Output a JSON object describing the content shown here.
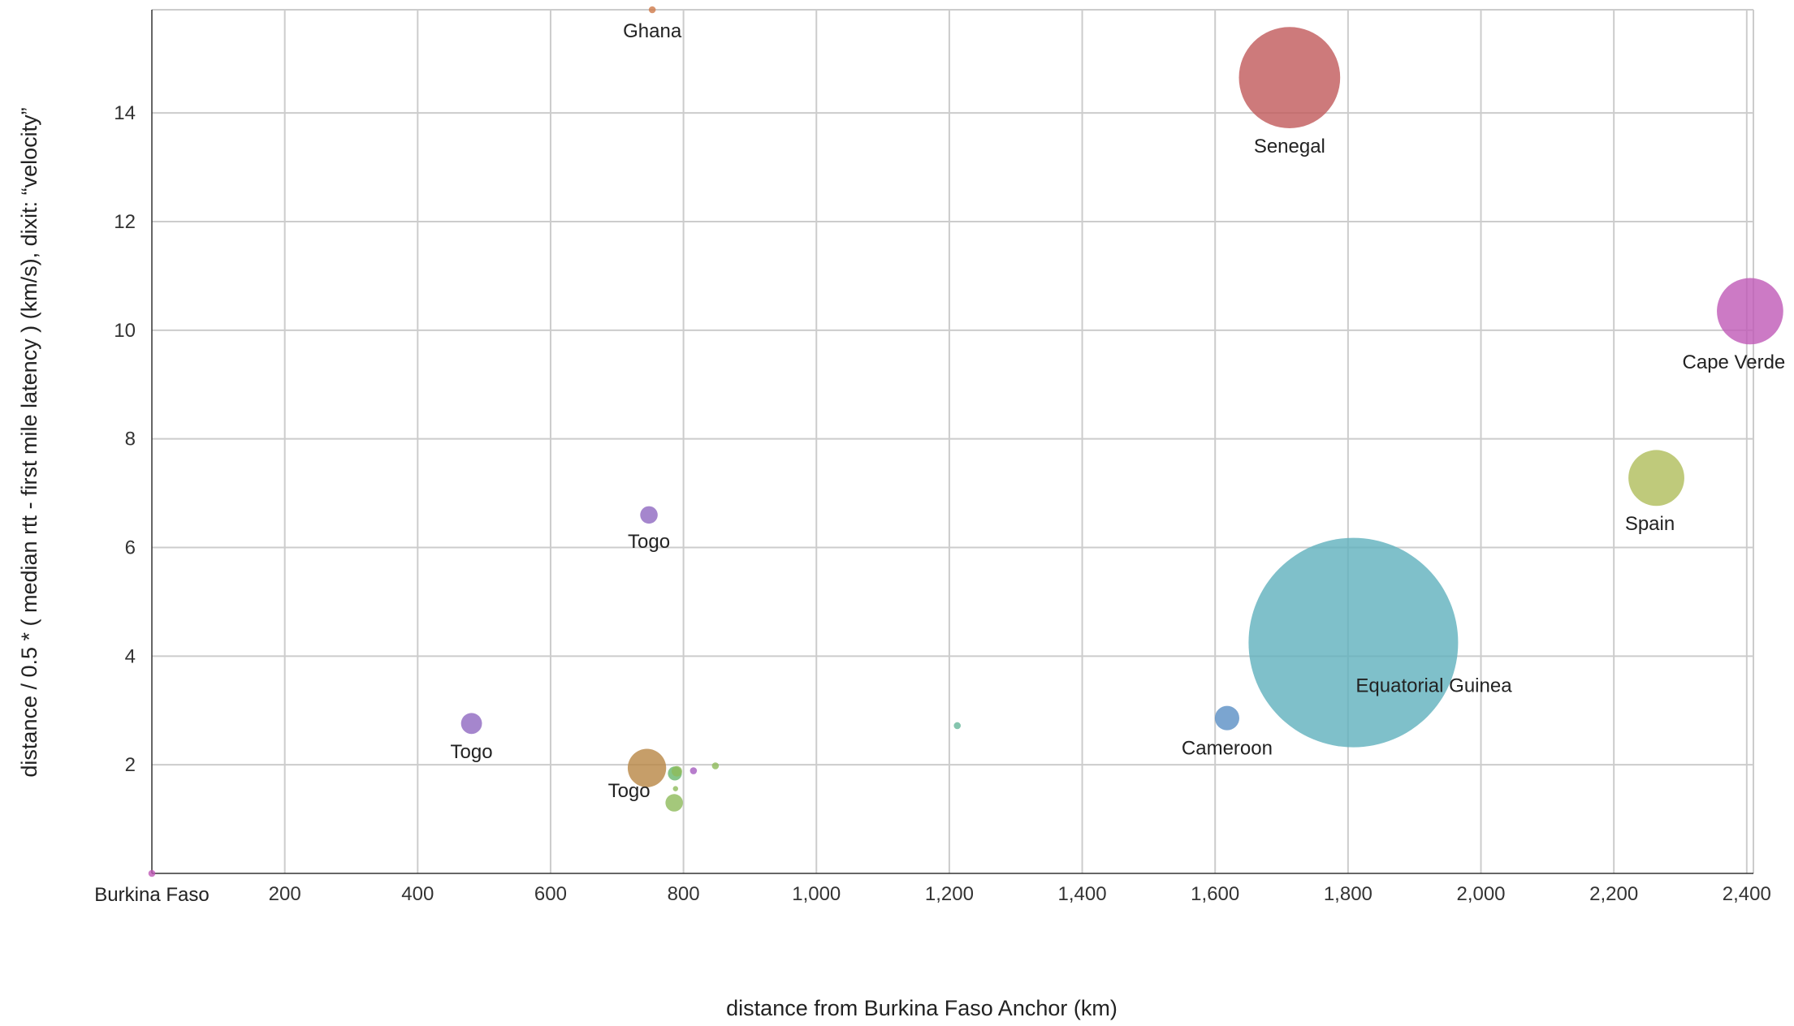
{
  "chart_data": {
    "type": "scatter",
    "title": "",
    "xlabel": "distance from Burkina Faso Anchor (km)",
    "ylabel": "distance / 0.5 * ( median rtt - first mile latency ) (km/s), dixit: “velocity”",
    "xlim": [
      0,
      2410
    ],
    "ylim": [
      0,
      15.9
    ],
    "x_ticks": [
      200,
      400,
      600,
      800,
      1000,
      1200,
      1400,
      1600,
      1800,
      2000,
      2200,
      2400
    ],
    "x_tick_labels": [
      "200",
      "400",
      "600",
      "800",
      "1,000",
      "1,200",
      "1,400",
      "1,600",
      "1,800",
      "2,000",
      "2,200",
      "2,400"
    ],
    "y_ticks": [
      2,
      4,
      6,
      8,
      10,
      12,
      14
    ],
    "y_tick_labels": [
      "2",
      "4",
      "6",
      "8",
      "10",
      "12",
      "14"
    ],
    "grid": true,
    "points": [
      {
        "label": "Equatorial Guinea",
        "x": 1808,
        "y": 4.25,
        "size": 60,
        "color": "#5fb0bd",
        "label_pos": "below-right"
      },
      {
        "label": "Senegal",
        "x": 1712,
        "y": 14.65,
        "size": 29,
        "color": "#c0595a",
        "label_pos": "below"
      },
      {
        "label": "Cape Verde",
        "x": 2405,
        "y": 10.35,
        "size": 19,
        "color": "#bf59b6",
        "label_pos": "below"
      },
      {
        "label": "Spain",
        "x": 2264,
        "y": 7.28,
        "size": 16,
        "color": "#afbd5a",
        "label_pos": "below-left"
      },
      {
        "label": "Togo",
        "x": 745,
        "y": 1.94,
        "size": 11,
        "color": "#b88644",
        "label_pos": "below-left"
      },
      {
        "label": "Cameroon",
        "x": 1618,
        "y": 2.86,
        "size": 7,
        "color": "#5a8fc4",
        "label_pos": "below"
      },
      {
        "label": "Togo",
        "x": 481,
        "y": 2.76,
        "size": 6,
        "color": "#8e68c0",
        "label_pos": "below"
      },
      {
        "label": "Togo",
        "x": 748,
        "y": 6.6,
        "size": 5,
        "color": "#8e68c0",
        "label_pos": "below"
      },
      {
        "label": "Ghana",
        "x": 753,
        "y": 15.9,
        "size": 2,
        "color": "#d07a4a",
        "label_pos": "below"
      },
      {
        "label": "Burkina Faso",
        "x": 0,
        "y": 0,
        "size": 2,
        "color": "#bf59b6",
        "label_pos": "below"
      },
      {
        "label": "",
        "x": 786,
        "y": 1.3,
        "size": 5,
        "color": "#8dba5a"
      },
      {
        "label": "",
        "x": 787,
        "y": 1.84,
        "size": 4,
        "color": "#66b66a"
      },
      {
        "label": "",
        "x": 790,
        "y": 1.88,
        "size": 3,
        "color": "#8dba5a"
      },
      {
        "label": "",
        "x": 815,
        "y": 1.89,
        "size": 2,
        "color": "#a55cbf"
      },
      {
        "label": "",
        "x": 848,
        "y": 1.98,
        "size": 2,
        "color": "#8dba5a"
      },
      {
        "label": "",
        "x": 788,
        "y": 1.56,
        "size": 1.5,
        "color": "#8dba5a"
      },
      {
        "label": "",
        "x": 1212,
        "y": 2.72,
        "size": 2,
        "color": "#66b69a"
      }
    ]
  }
}
